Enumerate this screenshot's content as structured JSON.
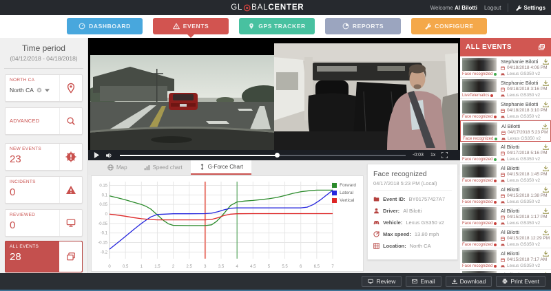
{
  "app": {
    "logo_prefix": "GL",
    "logo_mid": "BAL",
    "logo_suffix": "CENTER",
    "welcome_label": "Welcome",
    "user_name": "Al Bilotti",
    "logout_label": "Logout",
    "settings_label": "Settings"
  },
  "nav": {
    "items": [
      {
        "label": "DASHBOARD",
        "color": "#48a7dd",
        "active": false
      },
      {
        "label": "EVENTS",
        "color": "#d25450",
        "active": true
      },
      {
        "label": "GPS TRACKER",
        "color": "#48c1a0",
        "active": false
      },
      {
        "label": "REPORTS",
        "color": "#9ba5bf",
        "active": false
      },
      {
        "label": "CONFIGURE",
        "color": "#f4a84a",
        "active": false
      }
    ]
  },
  "sidebar": {
    "time_period_label": "Time period",
    "time_period_range": "(04/12/2018 - 04/18/2018)",
    "location_label": "NORTH CA",
    "location_value": "North CA",
    "advanced_search_label": "ADVANCED SEARCH",
    "counters": [
      {
        "label": "NEW EVENTS",
        "value": "23",
        "icon": "alert-badge",
        "active": false
      },
      {
        "label": "INCIDENTS",
        "value": "0",
        "icon": "warning-triangle",
        "active": false
      },
      {
        "label": "REVIEWED",
        "value": "0",
        "icon": "monitor",
        "active": false
      },
      {
        "label": "ALL EVENTS",
        "value": "28",
        "icon": "copy",
        "active": true
      }
    ]
  },
  "player": {
    "time_remaining": "-0:03",
    "speed": "1x",
    "progress_pct": 55
  },
  "tabs": [
    {
      "label": "Map",
      "icon": "globe-icon",
      "active": false
    },
    {
      "label": "Speed chart",
      "icon": "bar-chart-icon",
      "active": false
    },
    {
      "label": "G-Force Chart",
      "icon": "g-force-icon",
      "active": true
    }
  ],
  "details": {
    "title": "Face recognized",
    "timestamp": "04/17/2018 5:23 PM (Local)",
    "rows": [
      {
        "icon": "folder",
        "label": "Event ID:",
        "value": "BY01757427A7"
      },
      {
        "icon": "person",
        "label": "Driver:",
        "value": "Al Bilotti"
      },
      {
        "icon": "car",
        "label": "Vehicle:",
        "value": "Lexus GS350 v2"
      },
      {
        "icon": "speedometer",
        "label": "Max speed:",
        "value": "13.80 mph"
      },
      {
        "icon": "location",
        "label": "Location:",
        "value": "North CA"
      }
    ]
  },
  "events_panel": {
    "title": "ALL EVENTS",
    "items": [
      {
        "name": "Stephanie Bilotti",
        "date": "04/18/2018 4:06 PM",
        "vehicle": "Lexus GS350 v2",
        "tag": "Face recognized",
        "tag_state": "green",
        "selected": false
      },
      {
        "name": "Stephanie Bilotti",
        "date": "04/18/2018 3:16 PM",
        "vehicle": "Lexus GS350 v2",
        "tag": "LiveTelematics",
        "tag_state": "red",
        "selected": false
      },
      {
        "name": "Stephanie Bilotti",
        "date": "04/18/2018 3:10 PM",
        "vehicle": "Lexus GS350 v2",
        "tag": "Face recognized",
        "tag_state": "red",
        "selected": false
      },
      {
        "name": "Al Bilotti",
        "date": "04/17/2018 5:23 PM",
        "vehicle": "Lexus GS350 v2",
        "tag": "Face recognized",
        "tag_state": "green",
        "selected": true
      },
      {
        "name": "Al Bilotti",
        "date": "04/17/2018 5:16 PM",
        "vehicle": "Lexus GS350 v2",
        "tag": "Face recognized",
        "tag_state": "green",
        "selected": false
      },
      {
        "name": "Al Bilotti",
        "date": "04/15/2018 1:45 PM",
        "vehicle": "Lexus GS350 v2",
        "tag": "Face recognized",
        "tag_state": "red",
        "selected": false
      },
      {
        "name": "Al Bilotti",
        "date": "04/15/2018 1:38 PM",
        "vehicle": "Lexus GS350 v2",
        "tag": "Face recognized",
        "tag_state": "red",
        "selected": false
      },
      {
        "name": "Al Bilotti",
        "date": "04/15/2018 1:17 PM",
        "vehicle": "Lexus GS350 v2",
        "tag": "Face recognized",
        "tag_state": "red",
        "selected": false
      },
      {
        "name": "Al Bilotti",
        "date": "04/15/2018 12:29 PM",
        "vehicle": "Lexus GS350 v2",
        "tag": "Face recognized",
        "tag_state": "red",
        "selected": false
      },
      {
        "name": "Al Bilotti",
        "date": "04/15/2018 7:17 AM",
        "vehicle": "Lexus GS350 v2",
        "tag": "Face recognized",
        "tag_state": "red",
        "selected": false
      },
      {
        "name": "Al Bilotti",
        "date": "",
        "vehicle": "",
        "tag": "",
        "tag_state": "",
        "selected": false
      }
    ]
  },
  "footer": {
    "buttons": [
      {
        "label": "Review",
        "icon": "monitor-icon"
      },
      {
        "label": "Email",
        "icon": "envelope-icon"
      },
      {
        "label": "Download",
        "icon": "download-icon"
      },
      {
        "label": "Print Event",
        "icon": "printer-icon"
      }
    ]
  },
  "colors": {
    "accent_red": "#c9504d",
    "events_header": "#d15752",
    "topbar": "#26292e",
    "marker_event": "#ec8e85",
    "marker_secondary": "#3e9a47"
  },
  "chart_data": {
    "type": "line",
    "title": "",
    "xlabel": "",
    "ylabel": "",
    "xlim": [
      0,
      7
    ],
    "ylim": [
      -0.2,
      0.15
    ],
    "x_ticks": [
      0,
      0.5,
      1,
      1.5,
      2,
      2.5,
      3,
      3.5,
      4,
      4.5,
      5,
      5.5,
      6,
      6.5,
      7
    ],
    "y_ticks": [
      0.15,
      0.1,
      0.05,
      0,
      -0.05,
      -0.1,
      -0.15,
      -0.2
    ],
    "grid": true,
    "legend_position": "top-right",
    "event_marker_x": 3,
    "secondary_marker_x": 4,
    "series": [
      {
        "name": "Forward",
        "color": "#2a8a2a",
        "x": [
          0,
          0.25,
          0.5,
          0.75,
          1,
          1.15,
          1.3,
          1.5,
          1.7,
          1.85,
          2,
          2.5,
          3,
          3.2,
          3.35,
          3.5,
          3.65,
          3.8,
          4,
          4.25,
          4.5,
          5,
          5.25,
          5.5,
          5.75,
          6,
          6.25,
          6.5,
          7
        ],
        "y": [
          0.095,
          0.085,
          0.074,
          0.062,
          0.05,
          0.04,
          0.025,
          -0.005,
          -0.035,
          -0.052,
          -0.06,
          -0.061,
          -0.061,
          -0.057,
          -0.04,
          -0.015,
          0.015,
          0.045,
          0.063,
          0.068,
          0.071,
          0.08,
          0.087,
          0.097,
          0.108,
          0.117,
          0.122,
          0.125,
          0.125
        ]
      },
      {
        "name": "Lateral",
        "color": "#2525dd",
        "x": [
          0,
          0.25,
          0.5,
          0.75,
          1,
          1.15,
          1.3,
          1.5,
          2,
          2.5,
          3,
          3.2,
          3.4,
          3.6,
          3.8,
          4,
          4.5,
          5,
          5.5,
          6,
          6.2,
          6.4,
          6.6,
          6.8,
          7
        ],
        "y": [
          -0.185,
          -0.152,
          -0.118,
          -0.083,
          -0.05,
          -0.032,
          -0.015,
          -0.003,
          0.001,
          0.001,
          0.002,
          0.004,
          0.012,
          0.022,
          0.03,
          0.032,
          0.032,
          0.032,
          0.032,
          0.032,
          0.036,
          0.05,
          0.072,
          0.098,
          0.124
        ]
      },
      {
        "name": "Vertical",
        "color": "#dd2525",
        "x": [
          0,
          0.25,
          0.5,
          0.75,
          1,
          1.25,
          1.5,
          2,
          2.5,
          3,
          3.2,
          3.4,
          3.6,
          3.8,
          4,
          4.5,
          5,
          6,
          7
        ],
        "y": [
          -0.001,
          -0.006,
          -0.012,
          -0.019,
          -0.025,
          -0.029,
          -0.031,
          -0.031,
          -0.031,
          -0.031,
          -0.029,
          -0.02,
          -0.008,
          -0.001,
          0.001,
          0.002,
          0.002,
          0.002,
          0.002
        ]
      }
    ]
  }
}
